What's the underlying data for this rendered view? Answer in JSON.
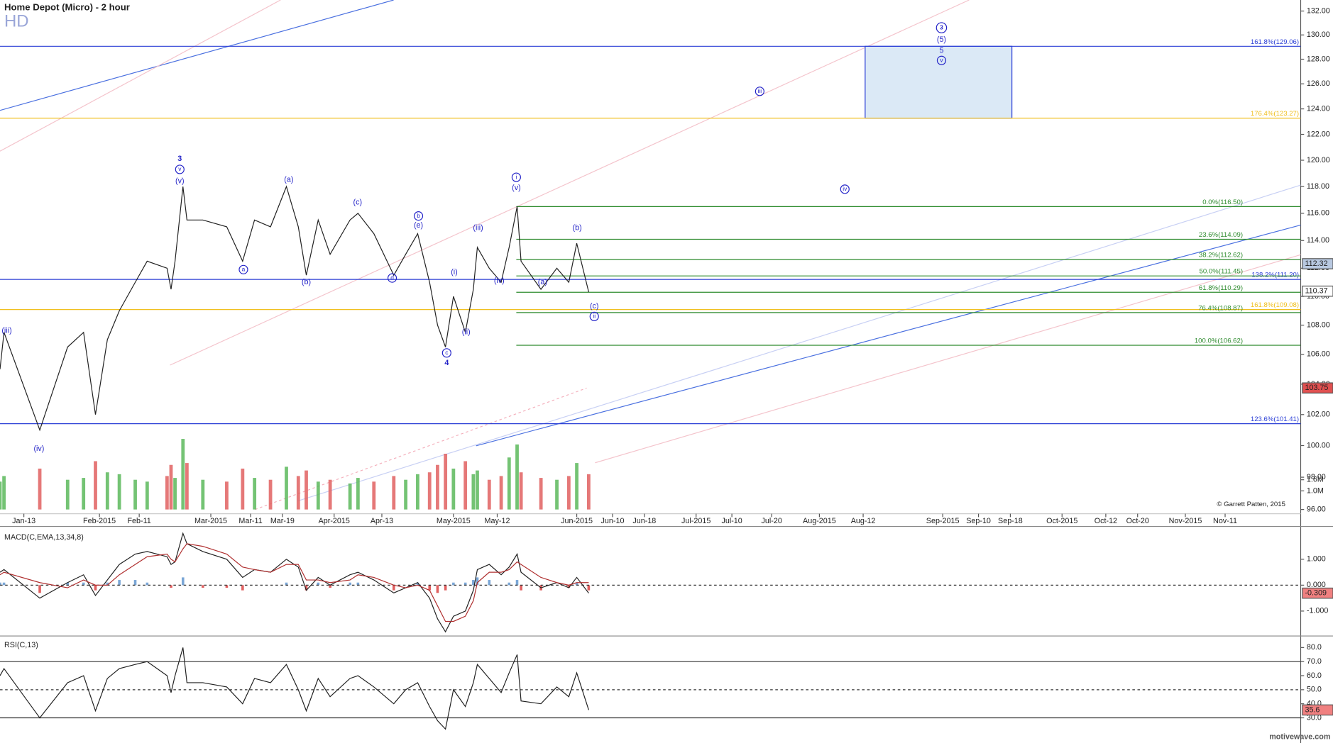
{
  "chart_data": [
    {
      "type": "line",
      "title": "Home Depot (Micro) - 2 hour",
      "subtitle": "HD",
      "copyright": "© Garrett Patten, 2015",
      "log_scale": true,
      "grid": false,
      "xlim": [
        7,
        334
      ],
      "xticks": [
        {
          "value": 13,
          "label": "Jan-13"
        },
        {
          "value": 32,
          "label": "Feb-2015"
        },
        {
          "value": 42,
          "label": "Feb-11"
        },
        {
          "value": 60,
          "label": "Mar-2015"
        },
        {
          "value": 70,
          "label": "Mar-11"
        },
        {
          "value": 78,
          "label": "Mar-19"
        },
        {
          "value": 91,
          "label": "Apr-2015"
        },
        {
          "value": 103,
          "label": "Apr-13"
        },
        {
          "value": 121,
          "label": "May-2015"
        },
        {
          "value": 132,
          "label": "May-12"
        },
        {
          "value": 152,
          "label": "Jun-2015"
        },
        {
          "value": 161,
          "label": "Jun-10"
        },
        {
          "value": 169,
          "label": "Jun-18"
        },
        {
          "value": 182,
          "label": "Jul-2015"
        },
        {
          "value": 191,
          "label": "Jul-10"
        },
        {
          "value": 201,
          "label": "Jul-20"
        },
        {
          "value": 213,
          "label": "Aug-2015"
        },
        {
          "value": 224,
          "label": "Aug-12"
        },
        {
          "value": 244,
          "label": "Sep-2015"
        },
        {
          "value": 253,
          "label": "Sep-10"
        },
        {
          "value": 261,
          "label": "Sep-18"
        },
        {
          "value": 274,
          "label": "Oct-2015"
        },
        {
          "value": 285,
          "label": "Oct-12"
        },
        {
          "value": 293,
          "label": "Oct-20"
        },
        {
          "value": 305,
          "label": "Nov-2015"
        },
        {
          "value": 315,
          "label": "Nov-11"
        }
      ],
      "ylim": [
        96,
        132
      ],
      "yticks": [
        {
          "value": 96,
          "label": "96.00"
        },
        {
          "value": 98,
          "label": "98.00"
        },
        {
          "value": 100,
          "label": "100.00"
        },
        {
          "value": 102,
          "label": "102.00"
        },
        {
          "value": 104,
          "label": "104.00"
        },
        {
          "value": 106,
          "label": "106.00"
        },
        {
          "value": 108,
          "label": "108.00"
        },
        {
          "value": 110,
          "label": "110.00"
        },
        {
          "value": 112,
          "label": "112.00"
        },
        {
          "value": 114,
          "label": "114.00"
        },
        {
          "value": 116,
          "label": "116.00"
        },
        {
          "value": 118,
          "label": "118.00"
        },
        {
          "value": 120,
          "label": "120.00"
        },
        {
          "value": 122,
          "label": "122.00"
        },
        {
          "value": 124,
          "label": "124.00"
        },
        {
          "value": 126,
          "label": "126.00"
        },
        {
          "value": 128,
          "label": "128.00"
        },
        {
          "value": 130,
          "label": "130.00"
        },
        {
          "value": 132,
          "label": "132.00"
        }
      ],
      "x": [
        7,
        8,
        17,
        24,
        28,
        31,
        34,
        37,
        41,
        44,
        49,
        50,
        51,
        53,
        54,
        58,
        64,
        68,
        71,
        75,
        79,
        82,
        84,
        87,
        90,
        95,
        97,
        101,
        106,
        109,
        112,
        115,
        117,
        119,
        121,
        124,
        126,
        127,
        130,
        133,
        135,
        137,
        138,
        143,
        147,
        150,
        152,
        155
      ],
      "series": [
        {
          "color": "#222222",
          "values": [
            105,
            107.5,
            101,
            106.5,
            107.5,
            102,
            107,
            109,
            111,
            112.5,
            112,
            110.5,
            112.5,
            118,
            115.5,
            115.5,
            115,
            112.5,
            115.5,
            115,
            118,
            115,
            111.5,
            115.5,
            113,
            115.5,
            116,
            114.5,
            111.5,
            113,
            114.5,
            111,
            108,
            106.5,
            110,
            107.5,
            110.5,
            113.5,
            112,
            111,
            113.5,
            116.5,
            112.5,
            110.5,
            112,
            111,
            113.8,
            110.3
          ]
        }
      ],
      "volume": {
        "up_color": "#5cb85c",
        "down_color": "#e06060",
        "ylim": [
          0,
          4.57
        ],
        "yticks": [
          {
            "value": 1.0,
            "label": "1.0M"
          },
          {
            "value": 1.6,
            "label": "1.6M"
          }
        ],
        "values": [
          1.5,
          1.8,
          2.2,
          1.6,
          1.7,
          2.6,
          2.0,
          1.9,
          1.6,
          1.5,
          1.8,
          2.4,
          1.7,
          3.8,
          2.5,
          1.6,
          1.5,
          2.2,
          1.7,
          1.6,
          2.3,
          1.8,
          2.1,
          1.5,
          1.6,
          1.4,
          1.7,
          1.5,
          1.8,
          1.6,
          1.9,
          2.0,
          2.4,
          3.0,
          2.2,
          2.6,
          1.9,
          2.1,
          1.6,
          1.8,
          2.8,
          3.5,
          2.0,
          1.7,
          1.6,
          1.8,
          2.5,
          1.9
        ]
      },
      "levels": [
        {
          "label": "161.8%(129.06)",
          "value": 129.06,
          "color": "#2b3fd6"
        },
        {
          "label": "176.4%(123.27)",
          "value": 123.27,
          "color": "#f0c020"
        },
        {
          "label": "138.2%(111.20)",
          "value": 111.2,
          "color": "#2b3fd6"
        },
        {
          "label": "161.8%(109.08)",
          "value": 109.08,
          "color": "#f0c020"
        },
        {
          "label": "123.6%(101.41)",
          "value": 101.41,
          "color": "#2b3fd6"
        },
        {
          "label": "0.0%(116.50)",
          "value": 116.5,
          "color": "#2e8b2e",
          "x_start": 136.8
        },
        {
          "label": "23.6%(114.09)",
          "value": 114.09,
          "color": "#2e8b2e",
          "x_start": 136.8
        },
        {
          "label": "38.2%(112.62)",
          "value": 112.62,
          "color": "#2e8b2e",
          "x_start": 136.8
        },
        {
          "label": "50.0%(111.45)",
          "value": 111.45,
          "color": "#2e8b2e",
          "x_start": 136.8
        },
        {
          "label": "61.8%(110.29)",
          "value": 110.29,
          "color": "#2e8b2e",
          "x_start": 136.8
        },
        {
          "label": "76.4%(108.87)",
          "value": 108.87,
          "color": "#2e8b2e",
          "x_start": 136.8
        },
        {
          "label": "100.0%(106.62)",
          "value": 106.62,
          "color": "#2e8b2e",
          "x_start": 136.8
        }
      ],
      "target_box": {
        "x": [
          224.5,
          261.4
        ],
        "y": [
          123.27,
          129.06
        ],
        "color": "#2b3fd6"
      },
      "price_markers": [
        {
          "value": 112.32,
          "color": "#b8c8e0"
        },
        {
          "value": 110.37,
          "color": "#ffffff"
        },
        {
          "value": 103.75,
          "color": "#e05050"
        }
      ],
      "annotation_color": "#2323c8",
      "annotations": [
        {
          "text": "(iii)",
          "x": 8.7,
          "y": 107.6
        },
        {
          "text": "(iv)",
          "x": 16.8,
          "y": 99.8
        },
        {
          "text": "3",
          "x": 52.2,
          "y": 120.1,
          "bold": true
        },
        {
          "text": "v",
          "x": 52.2,
          "y": 119.3,
          "circled": true
        },
        {
          "text": "(v)",
          "x": 52.2,
          "y": 118.4
        },
        {
          "text": "a",
          "x": 68.2,
          "y": 111.9,
          "circled": true
        },
        {
          "text": "(a)",
          "x": 79.6,
          "y": 118.5
        },
        {
          "text": "(b)",
          "x": 84,
          "y": 111.0
        },
        {
          "text": "(c)",
          "x": 96.9,
          "y": 116.8
        },
        {
          "text": "d",
          "x": 105.6,
          "y": 111.3,
          "circled": true
        },
        {
          "text": "b",
          "x": 112.2,
          "y": 115.8,
          "circled": true
        },
        {
          "text": "(e)",
          "x": 112.2,
          "y": 115.1
        },
        {
          "text": "c",
          "x": 119.3,
          "y": 106.1,
          "circled": true
        },
        {
          "text": "4",
          "x": 119.3,
          "y": 105.4,
          "bold": true
        },
        {
          "text": "(i)",
          "x": 121.2,
          "y": 111.7
        },
        {
          "text": "(ii)",
          "x": 124.2,
          "y": 107.5
        },
        {
          "text": "(iii)",
          "x": 127.2,
          "y": 114.9
        },
        {
          "text": "(iv)",
          "x": 132.5,
          "y": 111.1
        },
        {
          "text": "i",
          "x": 136.8,
          "y": 118.7,
          "circled": true
        },
        {
          "text": "(v)",
          "x": 136.8,
          "y": 117.9
        },
        {
          "text": "(a)",
          "x": 143.4,
          "y": 111.0
        },
        {
          "text": "(b)",
          "x": 152.1,
          "y": 114.9
        },
        {
          "text": "(c)",
          "x": 156.4,
          "y": 109.3
        },
        {
          "text": "ii",
          "x": 156.4,
          "y": 108.6,
          "circled": true
        },
        {
          "text": "iii",
          "x": 198,
          "y": 125.4,
          "circled": true
        },
        {
          "text": "iv",
          "x": 219.4,
          "y": 117.8,
          "circled": true
        },
        {
          "text": "3",
          "x": 243.7,
          "y": 130.6,
          "circled": true,
          "bold": true
        },
        {
          "text": "(5)",
          "x": 243.7,
          "y": 129.6
        },
        {
          "text": "5",
          "x": 243.7,
          "y": 128.7
        },
        {
          "text": "v",
          "x": 243.7,
          "y": 127.9,
          "circled": true
        }
      ]
    },
    {
      "type": "macd",
      "title": "MACD(C,EMA,13,34,8)",
      "ylim": [
        -1.93,
        2.2
      ],
      "yticks": [
        {
          "value": 1,
          "label": "1.000"
        },
        {
          "value": 0,
          "label": "0.000"
        },
        {
          "value": -1,
          "label": "-1.000"
        }
      ],
      "dashed_lines": [
        0
      ],
      "series": [
        {
          "color": "#222222",
          "values": [
            0.5,
            0.6,
            -0.5,
            0.1,
            0.4,
            -0.4,
            0.2,
            0.8,
            1.2,
            1.3,
            1.1,
            0.8,
            0.9,
            2.0,
            1.6,
            1.3,
            1.0,
            0.3,
            0.6,
            0.5,
            1.0,
            0.7,
            -0.2,
            0.3,
            0.0,
            0.4,
            0.5,
            0.2,
            -0.3,
            -0.1,
            0.1,
            -0.5,
            -1.3,
            -1.8,
            -1.2,
            -1.0,
            -0.2,
            0.6,
            0.8,
            0.4,
            0.7,
            1.2,
            0.5,
            -0.1,
            0.1,
            -0.1,
            0.3,
            -0.309
          ]
        },
        {
          "color": "#b03030",
          "values": [
            0.4,
            0.5,
            0.1,
            -0.1,
            0.2,
            0.0,
            0.0,
            0.4,
            0.8,
            1.1,
            1.2,
            1.0,
            0.9,
            1.4,
            1.6,
            1.5,
            1.2,
            0.7,
            0.6,
            0.5,
            0.8,
            0.8,
            0.2,
            0.2,
            0.1,
            0.2,
            0.4,
            0.3,
            0.0,
            -0.1,
            0.0,
            -0.2,
            -0.8,
            -1.4,
            -1.4,
            -1.2,
            -0.6,
            0.1,
            0.5,
            0.5,
            0.6,
            0.9,
            0.8,
            0.3,
            0.1,
            0.0,
            0.1,
            0.1
          ]
        }
      ],
      "histogram": {
        "up_color": "#7aa6d6",
        "down_color": "#e06060",
        "values": [
          0.1,
          0.1,
          -0.3,
          0.1,
          0.1,
          -0.2,
          0.1,
          0.2,
          0.2,
          0.1,
          0.0,
          -0.1,
          0.0,
          0.3,
          0.0,
          -0.1,
          -0.1,
          -0.2,
          0.0,
          0.0,
          0.1,
          0.0,
          -0.2,
          0.1,
          -0.1,
          0.1,
          0.1,
          0.0,
          -0.2,
          0.0,
          0.1,
          -0.2,
          -0.3,
          -0.2,
          0.1,
          0.1,
          0.2,
          0.3,
          0.2,
          0.0,
          0.1,
          0.2,
          -0.2,
          -0.2,
          0.0,
          -0.1,
          0.1,
          -0.2
        ]
      },
      "last_value": {
        "value": -0.309,
        "color": "#f08080"
      }
    },
    {
      "type": "rsi",
      "title": "RSI(C,13)",
      "ylim": [
        26,
        87
      ],
      "yticks": [
        {
          "value": 80,
          "label": "80.0"
        },
        {
          "value": 70,
          "label": "70.0"
        },
        {
          "value": 60,
          "label": "60.0"
        },
        {
          "value": 50,
          "label": "50.0"
        },
        {
          "value": 40,
          "label": "40.0"
        },
        {
          "value": 30,
          "label": "30.0"
        }
      ],
      "solid_lines": [
        70,
        30
      ],
      "dashed_lines": [
        50
      ],
      "series": [
        {
          "color": "#222222",
          "values": [
            60,
            65,
            30,
            55,
            60,
            35,
            58,
            65,
            68,
            70,
            60,
            48,
            60,
            80,
            55,
            55,
            52,
            40,
            58,
            55,
            68,
            50,
            35,
            58,
            45,
            58,
            60,
            52,
            40,
            50,
            55,
            38,
            28,
            22,
            50,
            38,
            55,
            68,
            58,
            48,
            62,
            75,
            42,
            40,
            52,
            45,
            62,
            35.6
          ]
        }
      ],
      "last_value": {
        "value": 35.6,
        "color": "#f08080"
      }
    }
  ],
  "footer": {
    "brand": "motivewave.com"
  }
}
